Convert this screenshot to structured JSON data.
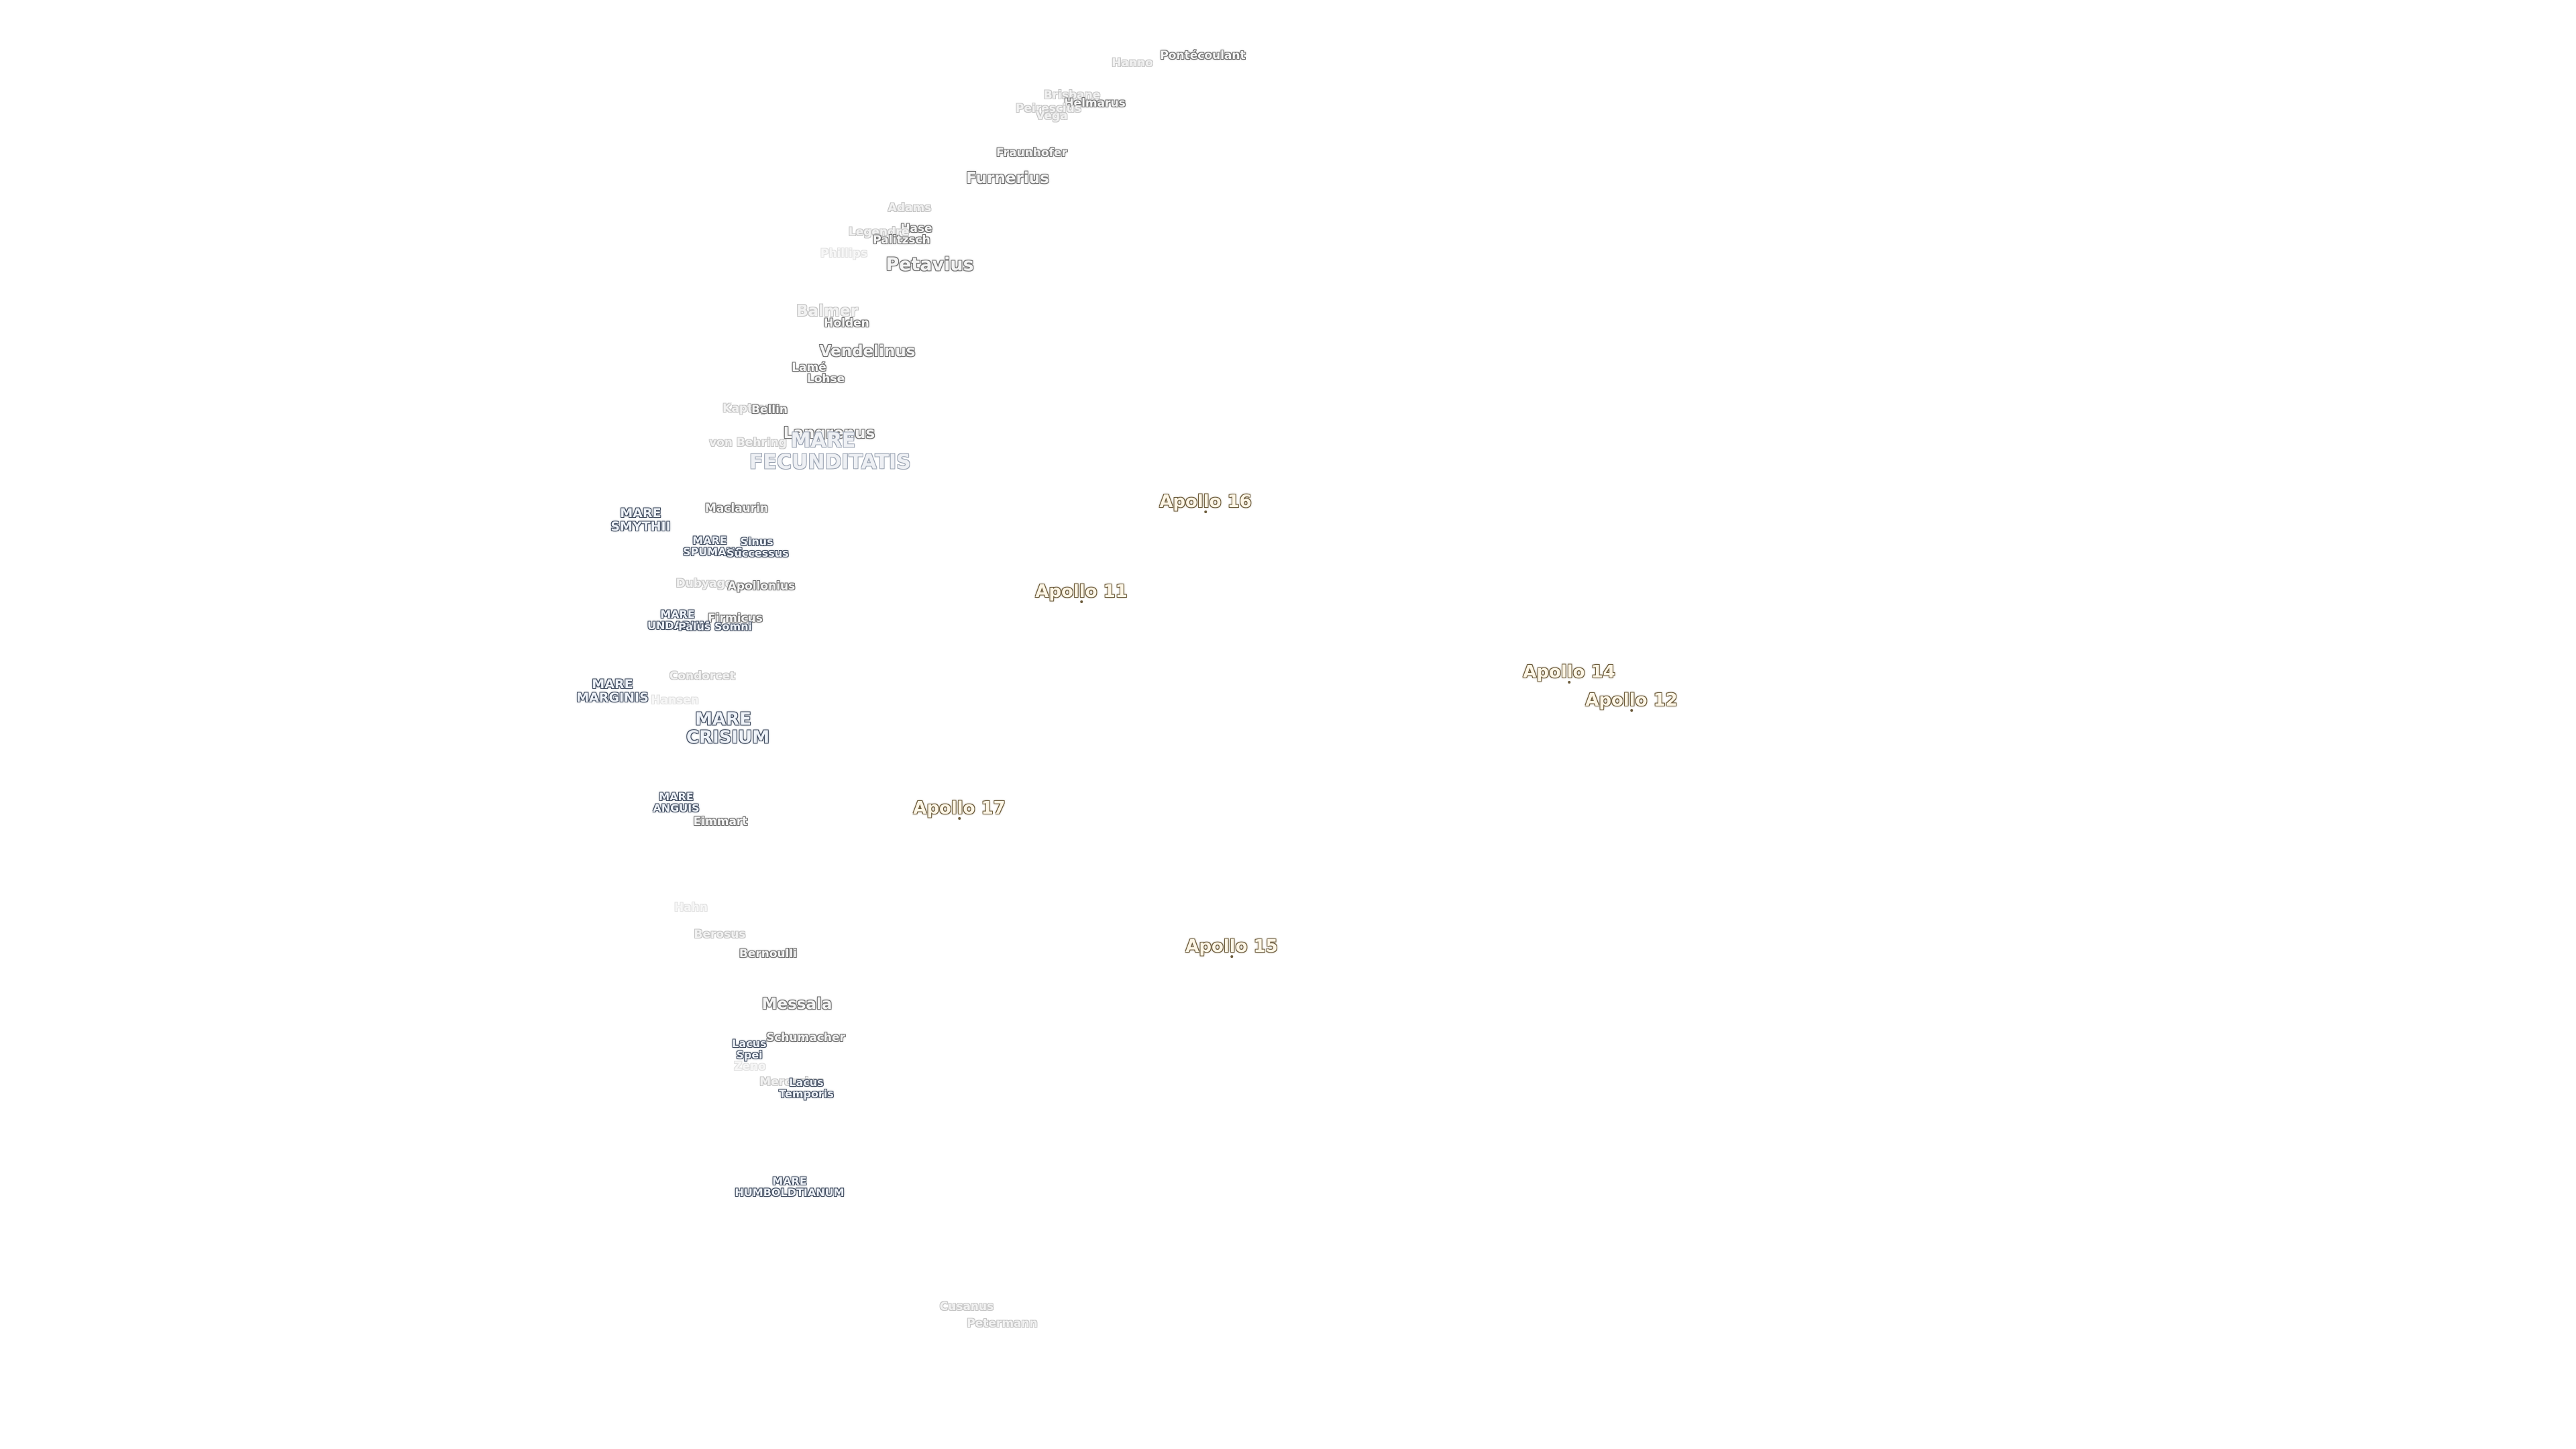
{
  "map": {
    "craters": [
      {
        "name": "Pontécoulant",
        "style": "crater"
      },
      {
        "name": "Hanno",
        "style": "crater faint"
      },
      {
        "name": "Brisbane",
        "style": "crater faint"
      },
      {
        "name": "Helmarus",
        "style": "crater"
      },
      {
        "name": "Peirescius",
        "style": "crater faint"
      },
      {
        "name": "Vega",
        "style": "crater faint"
      },
      {
        "name": "Fraunhofer",
        "style": "crater"
      },
      {
        "name": "Furnerius",
        "style": "crater md"
      },
      {
        "name": "Adams",
        "style": "crater faint"
      },
      {
        "name": "Hase",
        "style": "crater"
      },
      {
        "name": "Legendre",
        "style": "crater faint"
      },
      {
        "name": "Palitzsch",
        "style": "crater"
      },
      {
        "name": "Phillips",
        "style": "crater veryfaint"
      },
      {
        "name": "Petavius",
        "style": "crater lg"
      },
      {
        "name": "Balmer",
        "style": "crater md faint"
      },
      {
        "name": "Holden",
        "style": "crater"
      },
      {
        "name": "Vendelinus",
        "style": "crater md"
      },
      {
        "name": "Lamé",
        "style": "crater"
      },
      {
        "name": "Lohse",
        "style": "crater"
      },
      {
        "name": "Kapteyn",
        "style": "crater faint"
      },
      {
        "name": "Bellin",
        "style": "crater"
      },
      {
        "name": "Langrenus",
        "style": "crater md"
      },
      {
        "name": "von Behring",
        "style": "crater faint"
      },
      {
        "name": "Maclaurin",
        "style": "crater"
      },
      {
        "name": "Dubyago",
        "style": "crater faint"
      },
      {
        "name": "Apollonius",
        "style": "crater"
      },
      {
        "name": "Firmicus",
        "style": "crater"
      },
      {
        "name": "Condorcet",
        "style": "crater faint"
      },
      {
        "name": "Hansen",
        "style": "crater veryfaint"
      },
      {
        "name": "Eimmart",
        "style": "crater"
      },
      {
        "name": "Hahn",
        "style": "crater veryfaint"
      },
      {
        "name": "Berosus",
        "style": "crater faint"
      },
      {
        "name": "Bernoulli",
        "style": "crater"
      },
      {
        "name": "Messala",
        "style": "crater md"
      },
      {
        "name": "Schumacher",
        "style": "crater"
      },
      {
        "name": "Zeno",
        "style": "crater veryfaint"
      },
      {
        "name": "Mercurius",
        "style": "crater faint"
      },
      {
        "name": "Cusanus",
        "style": "crater faint"
      },
      {
        "name": "Petermann",
        "style": "crater faint"
      }
    ],
    "maria": [
      {
        "name": "MARE FECUNDITATIS",
        "style": "mare xl faint"
      },
      {
        "name": "MARE SMYTHII",
        "style": "mare"
      },
      {
        "name": "MARE SPUMANS",
        "style": "mare sm"
      },
      {
        "name": "Sinus Successus",
        "style": "mare sm"
      },
      {
        "name": "MARE UNDARUM",
        "style": "mare sm"
      },
      {
        "name": "Palus Somni",
        "style": "mare sm"
      },
      {
        "name": "MARE MARGINIS",
        "style": "mare"
      },
      {
        "name": "MARE CRISIUM",
        "style": "mare lg"
      },
      {
        "name": "MARE ANGUIS",
        "style": "mare sm"
      },
      {
        "name": "Lacus Spei",
        "style": "mare sm"
      },
      {
        "name": "Lacus Temporis",
        "style": "mare sm"
      },
      {
        "name": "MARE HUMBOLDTIANUM",
        "style": "mare sm"
      }
    ],
    "apollo_sites": [
      {
        "name": "Apollo 16"
      },
      {
        "name": "Apollo 11"
      },
      {
        "name": "Apollo 14"
      },
      {
        "name": "Apollo 12"
      },
      {
        "name": "Apollo 17"
      },
      {
        "name": "Apollo 15"
      }
    ]
  }
}
